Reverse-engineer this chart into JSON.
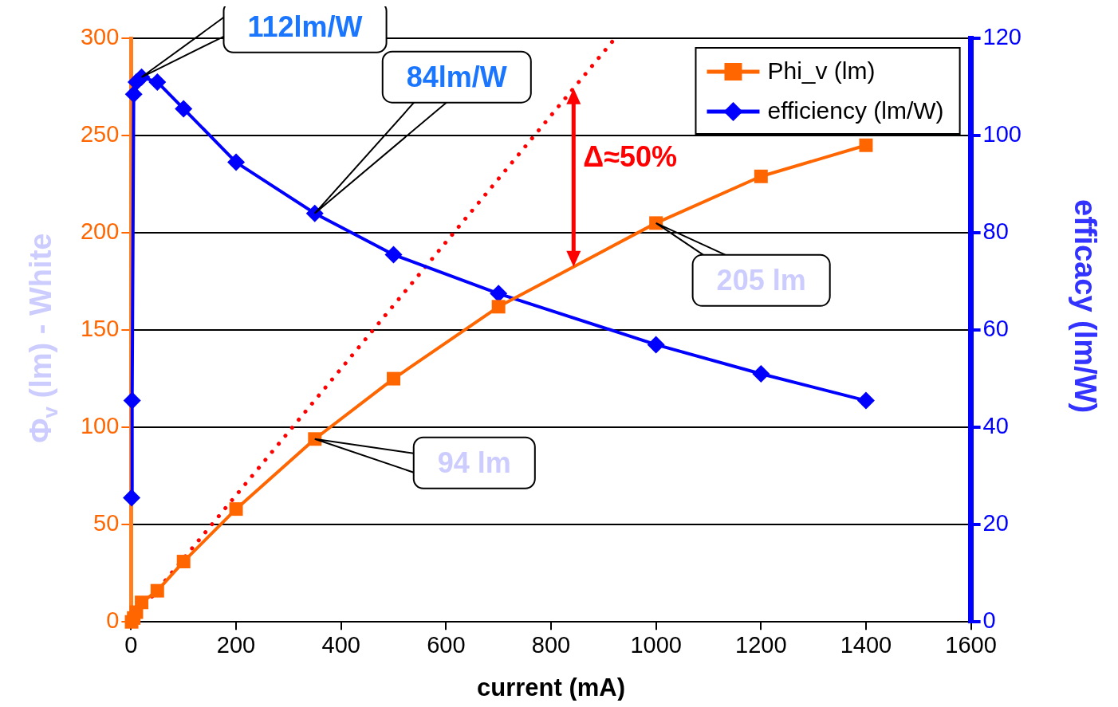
{
  "chart_data": {
    "type": "line",
    "xlabel": "current (mA)",
    "ylabel": "Φ$_{v}$ (lm) - White",
    "y2label": "efficacy (lm/W)",
    "xlim": [
      0,
      1600
    ],
    "xticks": [
      0,
      200,
      400,
      600,
      800,
      1000,
      1200,
      1400,
      1600
    ],
    "ylim": [
      0,
      300
    ],
    "yticks": [
      0,
      50,
      100,
      150,
      200,
      250,
      300
    ],
    "y2lim": [
      0,
      120
    ],
    "y2ticks": [
      0,
      20,
      40,
      60,
      80,
      100,
      120
    ],
    "grid": "y",
    "legend": "top right",
    "series": [
      {
        "name": "Phi_v (lm)",
        "color": "#ff6600",
        "marker": "square",
        "x": [
          1,
          5,
          10,
          20,
          50,
          100,
          200,
          350,
          500,
          700,
          1000,
          1200,
          1400
        ],
        "values": [
          0,
          2,
          5,
          10,
          16,
          31,
          58,
          94,
          125,
          162,
          205,
          229,
          245
        ]
      },
      {
        "name": "efficiency (lm/W)",
        "color": "#0000ff",
        "marker": "diamond",
        "axis": "y2",
        "x": [
          1,
          2,
          5,
          10,
          20,
          50,
          100,
          200,
          350,
          500,
          700,
          1000,
          1200,
          1400
        ],
        "values": [
          25.5,
          45.5,
          108.5,
          111,
          112,
          111,
          105.5,
          94.5,
          84,
          75.5,
          67.5,
          57,
          51,
          45.5
        ]
      },
      {
        "color": "#ff0000",
        "marker": "none",
        "line_style": "dotted",
        "x": [
          40,
          922
        ],
        "values": [
          13,
          300
        ]
      }
    ],
    "annotations": [
      "112lm/W",
      "84lm/W",
      {
        "text": "205 lm",
        "x": 1000,
        "y": 205
      },
      "94 lm",
      {
        "text": "Δ≈50%",
        "x": 843,
        "y": 274
      }
    ]
  }
}
